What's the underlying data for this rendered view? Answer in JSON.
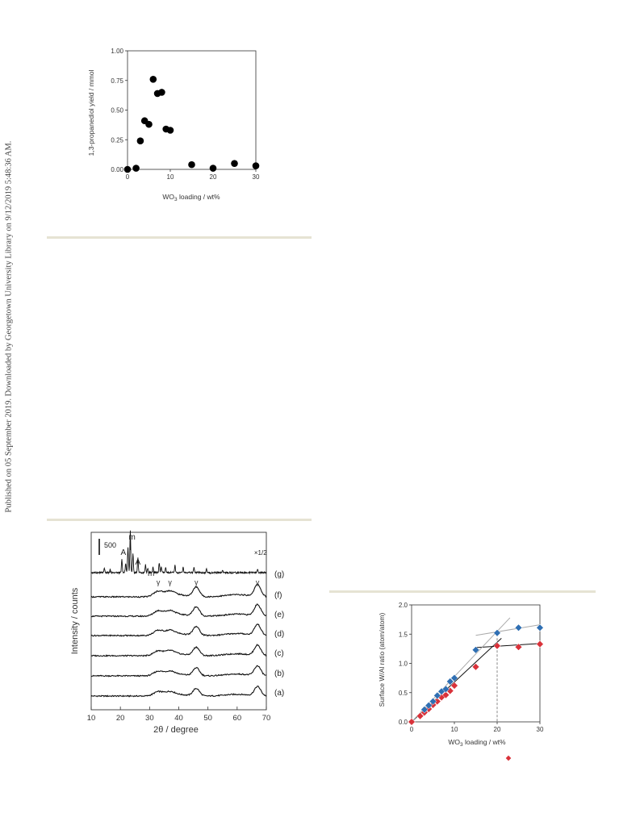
{
  "side_note": "Published on 05 September 2019. Downloaded by Georgetown University Library on 9/12/2019 5:48:36 AM.",
  "figures": [
    {
      "chart_data": {
        "type": "scatter",
        "xlabel_pre": "WO",
        "xlabel_sub": "3",
        "xlabel_post": " loading / wt%",
        "ylabel": "1,3-propanediol yield / mmol",
        "xlim": [
          0,
          30
        ],
        "ylim": [
          0,
          1.0
        ],
        "xticks": [
          "0",
          "10",
          "20",
          "30"
        ],
        "yticks": [
          "0.00",
          "0.25",
          "0.50",
          "0.75",
          "1.00"
        ],
        "grid": false,
        "series": [
          {
            "color": "#000000",
            "points": [
              [
                0,
                0.0
              ],
              [
                2,
                0.01
              ],
              [
                3,
                0.24
              ],
              [
                4,
                0.41
              ],
              [
                5,
                0.38
              ],
              [
                6,
                0.76
              ],
              [
                7,
                0.64
              ],
              [
                8,
                0.65
              ],
              [
                9,
                0.34
              ],
              [
                10,
                0.33
              ],
              [
                15,
                0.04
              ],
              [
                20,
                0.01
              ],
              [
                25,
                0.05
              ],
              [
                30,
                0.03
              ]
            ]
          }
        ]
      }
    },
    {
      "chart_data": {
        "type": "line",
        "xlabel": "2θ / degree",
        "ylabel": "Intensity / counts",
        "xlim": [
          10,
          70
        ],
        "xticks": [
          "10",
          "20",
          "30",
          "40",
          "50",
          "60",
          "70"
        ],
        "scale_bar": "500",
        "grid": false,
        "series": [
          {
            "name": "(a)"
          },
          {
            "name": "(b)"
          },
          {
            "name": "(c)"
          },
          {
            "name": "(d)"
          },
          {
            "name": "(e)"
          },
          {
            "name": "(f)"
          },
          {
            "name": "(g)"
          }
        ],
        "annotations": {
          "A1": "A",
          "A2": "A",
          "m1": "m",
          "m2": "m",
          "gamma": "γ",
          "half": "×1/2"
        },
        "gamma_peaks": [
          33,
          37,
          46,
          67
        ],
        "line_color": "#111111"
      }
    },
    {
      "chart_data": {
        "type": "scatter",
        "xlabel_pre": "WO",
        "xlabel_sub": "3",
        "xlabel_post": " loading / wt%",
        "ylabel": "Surface W/Al ratio (atom/atom)",
        "xlim": [
          0,
          30
        ],
        "ylim": [
          0,
          2.0
        ],
        "xticks": [
          "0",
          "10",
          "20",
          "30"
        ],
        "yticks": [
          "0.0",
          "0.5",
          "1.0",
          "1.5",
          "2.0"
        ],
        "grid": false,
        "vline_x": 20,
        "series": [
          {
            "color": "#d9323a",
            "points": [
              [
                0,
                0.0
              ],
              [
                2,
                0.1
              ],
              [
                3,
                0.16
              ],
              [
                4,
                0.22
              ],
              [
                5,
                0.29
              ],
              [
                6,
                0.35
              ],
              [
                7,
                0.42
              ],
              [
                8,
                0.46
              ],
              [
                9,
                0.53
              ],
              [
                10,
                0.62
              ],
              [
                15,
                0.94
              ],
              [
                20,
                1.3
              ],
              [
                25,
                1.28
              ],
              [
                30,
                1.33
              ]
            ]
          },
          {
            "color": "#2f6fb3",
            "points": [
              [
                3,
                0.21
              ],
              [
                4,
                0.28
              ],
              [
                5,
                0.35
              ],
              [
                6,
                0.45
              ],
              [
                7,
                0.52
              ],
              [
                8,
                0.56
              ],
              [
                9,
                0.69
              ],
              [
                10,
                0.75
              ],
              [
                15,
                1.23
              ],
              [
                20,
                1.52
              ],
              [
                25,
                1.61
              ],
              [
                30,
                1.61
              ]
            ]
          }
        ],
        "fit_lines": [
          {
            "color": "#111111",
            "from": [
              0,
              0.0
            ],
            "to": [
              21,
              1.43
            ]
          },
          {
            "color": "#111111",
            "from": [
              15,
              1.27
            ],
            "to": [
              30,
              1.34
            ]
          },
          {
            "color": "#a9a9a9",
            "from": [
              0,
              0.0
            ],
            "to": [
              23,
              1.78
            ]
          },
          {
            "color": "#a9a9a9",
            "from": [
              15,
              1.48
            ],
            "to": [
              30,
              1.66
            ]
          }
        ],
        "legend_markers": [
          "#d9323a",
          "#2f6fb3"
        ]
      }
    }
  ]
}
